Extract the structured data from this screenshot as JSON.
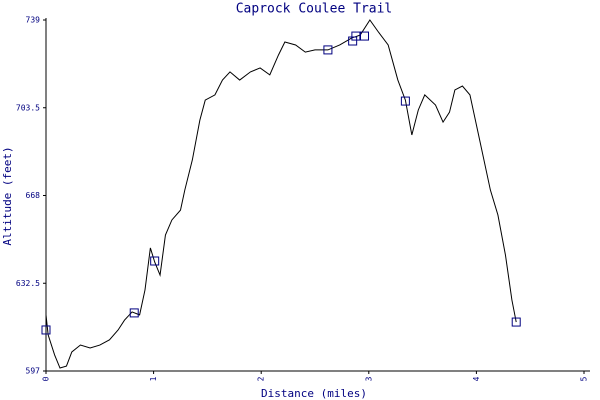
{
  "chart_data": {
    "type": "line",
    "title": "Caprock Coulee Trail",
    "xlabel": "Distance (miles)",
    "ylabel": "Altitude (feet)",
    "xlim": [
      0,
      5
    ],
    "ylim": [
      597,
      739
    ],
    "xticks": [
      0,
      1,
      2,
      3,
      4,
      5
    ],
    "yticks": [
      597,
      632.5,
      668,
      703.5,
      739
    ],
    "series": [
      {
        "color": "#000000",
        "marker": "none",
        "x": [
          0,
          0.02,
          0.08,
          0.13,
          0.19,
          0.24,
          0.32,
          0.41,
          0.5,
          0.59,
          0.67,
          0.73,
          0.8,
          0.87,
          0.92,
          0.97,
          1.01,
          1.06,
          1.11,
          1.17,
          1.25,
          1.29,
          1.36,
          1.43,
          1.48,
          1.57,
          1.64,
          1.71,
          1.8,
          1.9,
          1.99,
          2.08,
          2.16,
          2.22,
          2.32,
          2.41,
          2.5,
          2.62,
          2.73,
          2.84,
          2.92,
          3.01,
          3.09,
          3.18,
          3.27,
          3.34,
          3.4,
          3.46,
          3.52,
          3.62,
          3.69,
          3.75,
          3.8,
          3.87,
          3.94,
          4.03,
          4.13,
          4.2,
          4.27,
          4.33,
          4.37
        ],
        "values": [
          619.7,
          611.6,
          603.5,
          598.2,
          599,
          604.7,
          607.5,
          606.3,
          607.5,
          609.6,
          613.6,
          617.6,
          620.9,
          619.7,
          629.8,
          646.8,
          641.1,
          635.8,
          652,
          658.1,
          662.1,
          670.2,
          682.4,
          698.5,
          706.6,
          708.7,
          714.7,
          718,
          714.7,
          718,
          719.6,
          716.8,
          724.8,
          730.1,
          728.9,
          726,
          726.9,
          726.9,
          728.9,
          731.7,
          732.9,
          739,
          734.1,
          728.9,
          714.7,
          706.6,
          692.5,
          702.6,
          708.7,
          704.6,
          697.7,
          701.7,
          710.7,
          712.3,
          708.7,
          690.5,
          670.2,
          660.1,
          643.9,
          625.7,
          616.8
        ]
      },
      {
        "color": "#000080",
        "marker": "square",
        "x": [
          0,
          0.82,
          1.01,
          2.62,
          2.85,
          2.88,
          2.96,
          3.34,
          4.37
        ],
        "values": [
          613.6,
          620.5,
          641.5,
          726.9,
          730.5,
          732.5,
          732.5,
          706.2,
          616.8
        ]
      }
    ]
  }
}
